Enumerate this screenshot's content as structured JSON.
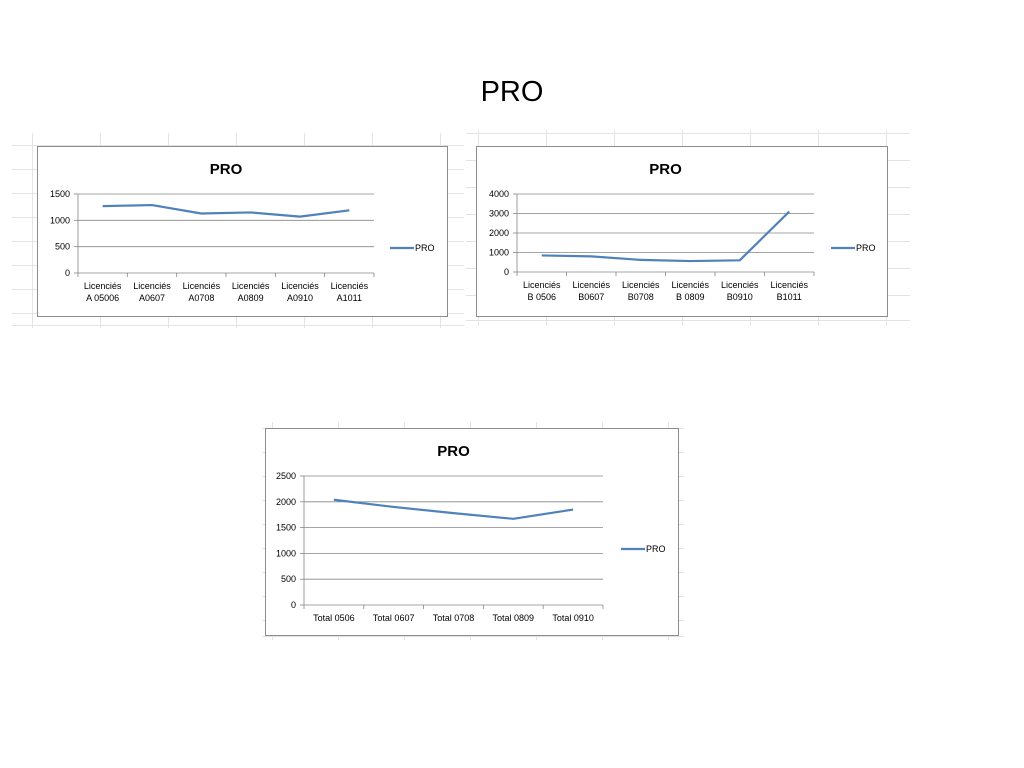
{
  "slide": {
    "title": "PRO"
  },
  "colors": {
    "line": "#4f81bd",
    "gridline": "#868686",
    "axis": "#868686",
    "text": "#000000"
  },
  "chart_data": [
    {
      "type": "line",
      "title": "PRO",
      "categories": [
        [
          "Licenciés",
          "A 05006"
        ],
        [
          "Licenciés",
          "A0607"
        ],
        [
          "Licenciés",
          "A0708"
        ],
        [
          "Licenciés",
          "A0809"
        ],
        [
          "Licenciés",
          "A0910"
        ],
        [
          "Licenciés",
          "A1011"
        ]
      ],
      "series": [
        {
          "name": "PRO",
          "values": [
            1270,
            1290,
            1130,
            1150,
            1070,
            1190
          ]
        }
      ],
      "ylim": [
        0,
        1500
      ],
      "yticks": [
        0,
        500,
        1000,
        1500
      ],
      "grid": true,
      "legend": "right"
    },
    {
      "type": "line",
      "title": "PRO",
      "categories": [
        [
          "Licenciés",
          "B 0506"
        ],
        [
          "Licenciés",
          "B0607"
        ],
        [
          "Licenciés",
          "B0708"
        ],
        [
          "Licenciés",
          "B 0809"
        ],
        [
          "Licenciés",
          "B0910"
        ],
        [
          "Licenciés",
          "B1011"
        ]
      ],
      "series": [
        {
          "name": "PRO",
          "values": [
            850,
            800,
            620,
            560,
            600,
            3100
          ]
        }
      ],
      "ylim": [
        0,
        4000
      ],
      "yticks": [
        0,
        1000,
        2000,
        3000,
        4000
      ],
      "grid": true,
      "legend": "right"
    },
    {
      "type": "line",
      "title": "PRO",
      "categories": [
        [
          "Total 0506"
        ],
        [
          "Total 0607"
        ],
        [
          "Total 0708"
        ],
        [
          "Total 0809"
        ],
        [
          "Total 0910"
        ]
      ],
      "series": [
        {
          "name": "PRO",
          "values": [
            2040,
            1900,
            1780,
            1670,
            1850
          ]
        }
      ],
      "ylim": [
        0,
        2500
      ],
      "yticks": [
        0,
        500,
        1000,
        1500,
        2000,
        2500
      ],
      "grid": true,
      "legend": "right"
    }
  ]
}
